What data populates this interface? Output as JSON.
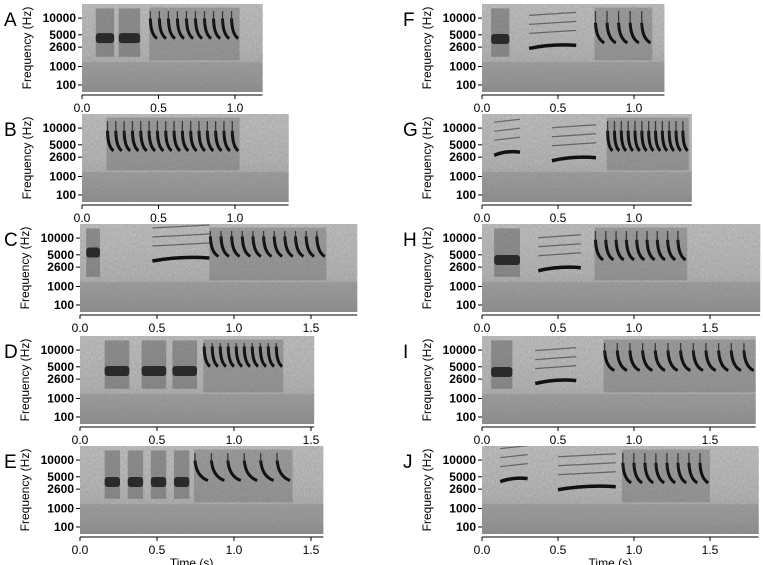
{
  "figure": {
    "ylabel": "Frequency (Hz)",
    "xlabel": "Time (s)",
    "ytick_labels": [
      "10000",
      "5000",
      "2600",
      "1000",
      "100"
    ]
  },
  "chart_data": [
    {
      "panel": "A",
      "type": "heatmap",
      "ylabel": "Frequency (Hz)",
      "yticks": [
        "10000",
        "5000",
        "2600",
        "1000",
        "100"
      ],
      "xlim": [
        0,
        1.18
      ],
      "xticks": [
        "0.0",
        "0.5",
        "1.0"
      ],
      "xlabel": "",
      "elements": [
        {
          "t0": 0.09,
          "t1": 0.21,
          "f": 4200,
          "kind": "note"
        },
        {
          "t0": 0.24,
          "t1": 0.38,
          "f": 4200,
          "kind": "note"
        },
        {
          "t0": 0.44,
          "t1": 1.03,
          "f": 5500,
          "kind": "trill",
          "n": 10
        }
      ]
    },
    {
      "panel": "B",
      "type": "heatmap",
      "ylabel": "Frequency (Hz)",
      "yticks": [
        "10000",
        "5000",
        "2600",
        "1000",
        "100"
      ],
      "xlim": [
        0,
        1.35
      ],
      "xticks": [
        "0.0",
        "0.5",
        "1.0"
      ],
      "xlabel": "",
      "elements": [
        {
          "t0": 0.16,
          "t1": 1.03,
          "f": 5000,
          "kind": "trill",
          "n": 16
        }
      ]
    },
    {
      "panel": "C",
      "type": "heatmap",
      "ylabel": "Frequency (Hz)",
      "yticks": [
        "10000",
        "5000",
        "2600",
        "1000",
        "100"
      ],
      "xlim": [
        0,
        1.8
      ],
      "xticks": [
        "0.0",
        "0.5",
        "1.0",
        "1.5"
      ],
      "xlabel": "",
      "elements": [
        {
          "t0": 0.04,
          "t1": 0.13,
          "f": 5500,
          "kind": "note"
        },
        {
          "t0": 0.47,
          "t1": 0.84,
          "f": 4000,
          "kind": "tone"
        },
        {
          "t0": 0.84,
          "t1": 1.6,
          "f": 6000,
          "kind": "trill",
          "n": 11
        }
      ]
    },
    {
      "panel": "D",
      "type": "heatmap",
      "ylabel": "Frequency (Hz)",
      "yticks": [
        "10000",
        "5000",
        "2600",
        "1000",
        "100"
      ],
      "xlim": [
        0,
        1.52
      ],
      "xticks": [
        "0.0",
        "0.5",
        "1.0",
        "1.5"
      ],
      "xlabel": "",
      "elements": [
        {
          "t0": 0.16,
          "t1": 0.32,
          "f": 4000,
          "kind": "note"
        },
        {
          "t0": 0.4,
          "t1": 0.56,
          "f": 4000,
          "kind": "note"
        },
        {
          "t0": 0.6,
          "t1": 0.76,
          "f": 4000,
          "kind": "note"
        },
        {
          "t0": 0.8,
          "t1": 1.32,
          "f": 6500,
          "kind": "trill",
          "n": 10
        }
      ]
    },
    {
      "panel": "E",
      "type": "heatmap",
      "ylabel": "Frequency (Hz)",
      "yticks": [
        "10000",
        "5000",
        "2600",
        "1000",
        "100"
      ],
      "xlim": [
        0,
        1.58
      ],
      "xticks": [
        "0.0",
        "0.5",
        "1.0",
        "1.5"
      ],
      "xlabel": "Time (s)",
      "elements": [
        {
          "t0": 0.16,
          "t1": 0.26,
          "f": 3800,
          "kind": "note"
        },
        {
          "t0": 0.31,
          "t1": 0.41,
          "f": 3800,
          "kind": "note"
        },
        {
          "t0": 0.46,
          "t1": 0.56,
          "f": 3800,
          "kind": "note"
        },
        {
          "t0": 0.61,
          "t1": 0.71,
          "f": 3800,
          "kind": "note"
        },
        {
          "t0": 0.74,
          "t1": 1.38,
          "f": 5500,
          "kind": "trill",
          "n": 6
        }
      ]
    },
    {
      "panel": "F",
      "type": "heatmap",
      "ylabel": "Frequency (Hz)",
      "yticks": [
        "10000",
        "5000",
        "2600",
        "1000",
        "100"
      ],
      "xlim": [
        0,
        1.2
      ],
      "xticks": [
        "0.0",
        "0.5",
        "1.0"
      ],
      "xlabel": "",
      "elements": [
        {
          "t0": 0.06,
          "t1": 0.18,
          "f": 4000,
          "kind": "note"
        },
        {
          "t0": 0.31,
          "t1": 0.62,
          "f": 2700,
          "kind": "tone"
        },
        {
          "t0": 0.74,
          "t1": 1.12,
          "f": 4500,
          "kind": "trill",
          "n": 5
        }
      ]
    },
    {
      "panel": "G",
      "type": "heatmap",
      "ylabel": "Frequency (Hz)",
      "yticks": [
        "10000",
        "5000",
        "2600",
        "1000",
        "100"
      ],
      "xlim": [
        0,
        1.38
      ],
      "xticks": [
        "0.0",
        "0.5",
        "1.0"
      ],
      "xlabel": "",
      "elements": [
        {
          "t0": 0.08,
          "t1": 0.25,
          "f": 3200,
          "kind": "tone"
        },
        {
          "t0": 0.46,
          "t1": 0.75,
          "f": 2400,
          "kind": "tone"
        },
        {
          "t0": 0.82,
          "t1": 1.36,
          "f": 5000,
          "kind": "trill",
          "n": 12
        }
      ]
    },
    {
      "panel": "H",
      "type": "heatmap",
      "ylabel": "Frequency (Hz)",
      "yticks": [
        "10000",
        "5000",
        "2600",
        "1000",
        "100"
      ],
      "xlim": [
        0,
        1.83
      ],
      "xticks": [
        "0.0",
        "0.5",
        "1.0",
        "1.5"
      ],
      "xlabel": "",
      "elements": [
        {
          "t0": 0.08,
          "t1": 0.25,
          "f": 3800,
          "kind": "note"
        },
        {
          "t0": 0.37,
          "t1": 0.65,
          "f": 2400,
          "kind": "tone"
        },
        {
          "t0": 0.74,
          "t1": 1.35,
          "f": 5200,
          "kind": "trill",
          "n": 9
        }
      ]
    },
    {
      "panel": "I",
      "type": "heatmap",
      "ylabel": "Frequency (Hz)",
      "yticks": [
        "10000",
        "5000",
        "2600",
        "1000",
        "100"
      ],
      "xlim": [
        0,
        1.8
      ],
      "xticks": [
        "0.0",
        "0.5",
        "1.0",
        "1.5"
      ],
      "xlabel": "",
      "elements": [
        {
          "t0": 0.06,
          "t1": 0.2,
          "f": 3800,
          "kind": "note"
        },
        {
          "t0": 0.35,
          "t1": 0.62,
          "f": 2300,
          "kind": "tone"
        },
        {
          "t0": 0.8,
          "t1": 1.8,
          "f": 5500,
          "kind": "trill",
          "n": 12
        }
      ]
    },
    {
      "panel": "J",
      "type": "heatmap",
      "ylabel": "Frequency (Hz)",
      "yticks": [
        "10000",
        "5000",
        "2600",
        "1000",
        "100"
      ],
      "xlim": [
        0,
        1.82
      ],
      "xticks": [
        "0.0",
        "0.5",
        "1.0",
        "1.5"
      ],
      "xlabel": "Time (s)",
      "elements": [
        {
          "t0": 0.12,
          "t1": 0.3,
          "f": 4300,
          "kind": "tone"
        },
        {
          "t0": 0.5,
          "t1": 0.88,
          "f": 2800,
          "kind": "tone"
        },
        {
          "t0": 0.92,
          "t1": 1.5,
          "f": 5000,
          "kind": "trill",
          "n": 8
        }
      ]
    }
  ]
}
